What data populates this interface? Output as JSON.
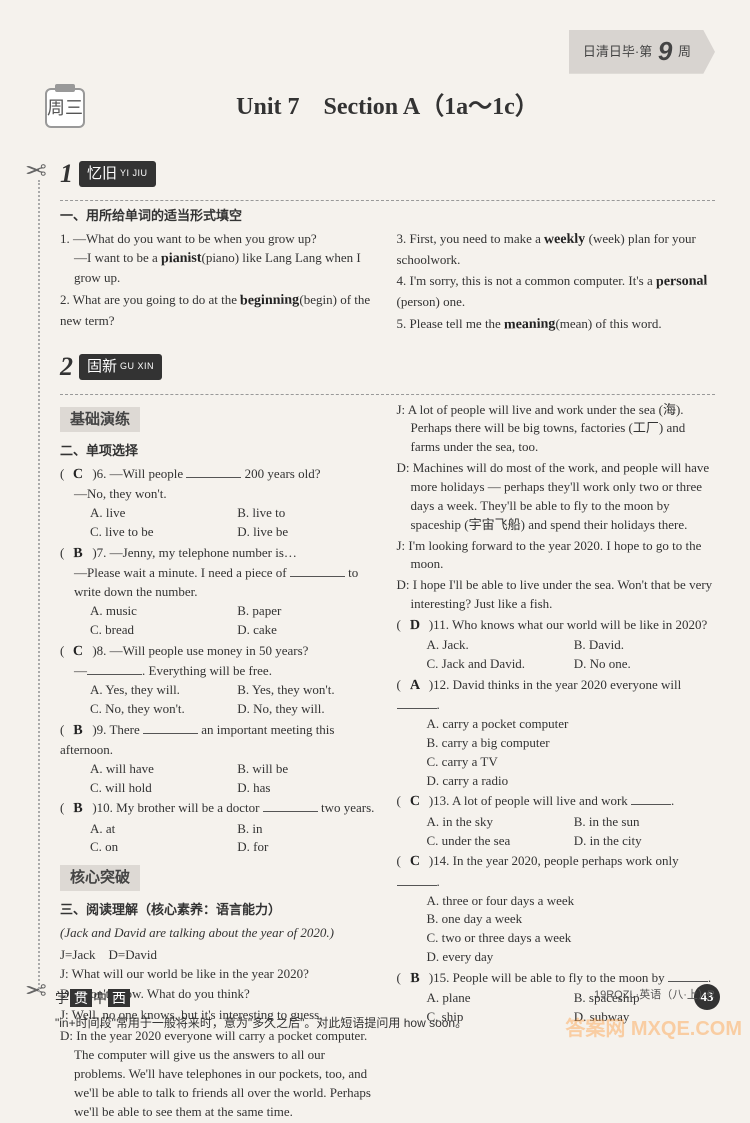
{
  "header": {
    "ribbon_prefix": "日清日毕·第",
    "week_number": "9",
    "ribbon_suffix": "周",
    "day_label": "周三",
    "unit_title": "Unit 7　Section A（1a～1c）"
  },
  "section1": {
    "number": "1",
    "pill_cn": "忆旧",
    "pill_pinyin": "YI JIU",
    "instruction": "一、用所给单词的适当形式填空",
    "left": [
      {
        "n": "1.",
        "lines": [
          "—What do you want to be when you grow up?",
          "—I want to be a {hw:pianist}(piano) like Lang Lang when I grow up."
        ]
      },
      {
        "n": "2.",
        "lines": [
          "What are you going to do at the {hw:beginning}(begin) of the new term?"
        ]
      }
    ],
    "right": [
      {
        "n": "3.",
        "lines": [
          "First, you need to make a {hw:weekly} (week) plan for your schoolwork."
        ]
      },
      {
        "n": "4.",
        "lines": [
          "I'm sorry, this is not a common computer. It's a {hw:personal} (person) one."
        ]
      },
      {
        "n": "5.",
        "lines": [
          "Please tell me the {hw:meaning}(mean) of this word."
        ]
      }
    ]
  },
  "section2": {
    "number": "2",
    "pill_cn": "固新",
    "pill_pinyin": "GU XIN",
    "sub1": "基础演练",
    "instruction2": "二、单项选择",
    "mcq_left": [
      {
        "ans": "C",
        "n": "6.",
        "stem": "—Will people ______ 200 years old?",
        "cont": "—No, they won't.",
        "opts": [
          "A. live",
          "B. live to",
          "C. live to be",
          "D. live be"
        ]
      },
      {
        "ans": "B",
        "n": "7.",
        "stem": "—Jenny, my telephone number is…",
        "cont": "—Please wait a minute. I need a piece of ______ to write down the number.",
        "opts": [
          "A. music",
          "B. paper",
          "C. bread",
          "D. cake"
        ]
      },
      {
        "ans": "C",
        "n": "8.",
        "stem": "—Will people use money in 50 years?",
        "cont": "—______. Everything will be free.",
        "opts": [
          "A. Yes, they will.",
          "B. Yes, they won't.",
          "C. No, they won't.",
          "D. No, they will."
        ]
      },
      {
        "ans": "B",
        "n": "9.",
        "stem": "There ______ an important meeting this afternoon.",
        "cont": "",
        "opts": [
          "A. will have",
          "B. will be",
          "C. will hold",
          "D. has"
        ]
      },
      {
        "ans": "B",
        "n": "10.",
        "stem": "My brother will be a doctor ______ two years.",
        "cont": "",
        "opts": [
          "A. at",
          "B. in",
          "C. on",
          "D. for"
        ]
      }
    ],
    "sub2": "核心突破",
    "instruction3": "三、阅读理解（核心素养：语言能力）",
    "reading_intro": "(Jack and David are talking about the year of 2020.)",
    "reading_key": "J=Jack　D=David",
    "dialog_left": [
      "J: What will our world be like in the year 2020?",
      "D: I don't know. What do you think?",
      "J: Well, no one knows, but it's interesting to guess.",
      "D: In the year 2020 everyone will carry a pocket computer. The computer will give us the answers to all our problems. We'll have telephones in our pockets, too, and we'll be able to talk to friends all over the world. Perhaps we'll be able to see them at the same time."
    ],
    "dialog_right": [
      "J: A lot of people will live and work under the sea (海). Perhaps there will be big towns, factories (工厂) and farms under the sea, too.",
      "D: Machines will do most of the work, and people will have more holidays — perhaps they'll work only two or three days a week. They'll be able to fly to the moon by spaceship (宇宙飞船) and spend their holidays there.",
      "J: I'm looking forward to the year 2020. I hope to go to the moon.",
      "D: I hope I'll be able to live under the sea. Won't that be very interesting? Just like a fish."
    ],
    "mcq_right": [
      {
        "ans": "D",
        "n": "11.",
        "stem": "Who knows what our world will be like in 2020?",
        "opts": [
          "A. Jack.",
          "B. David.",
          "C. Jack and David.",
          "D. No one."
        ]
      },
      {
        "ans": "A",
        "n": "12.",
        "stem": "David thinks in the year 2020 everyone will ______.",
        "opts": [
          "A. carry a pocket computer",
          "B. carry a big computer",
          "C. carry a TV",
          "D. carry a radio"
        ]
      },
      {
        "ans": "C",
        "n": "13.",
        "stem": "A lot of people will live and work ______.",
        "opts": [
          "A. in the sky",
          "B. in the sun",
          "C. under the sea",
          "D. in the city"
        ]
      },
      {
        "ans": "C",
        "n": "14.",
        "stem": "In the year 2020, people perhaps work only ______.",
        "opts": [
          "A. three or four days a week",
          "B. one day a week",
          "C. two or three days a week",
          "D. every day"
        ]
      },
      {
        "ans": "B",
        "n": "15.",
        "stem": "People will be able to fly to the moon by ______.",
        "opts": [
          "A. plane",
          "B. spaceship",
          "C. ship",
          "D. subway"
        ]
      }
    ]
  },
  "footer": {
    "logo_chars": [
      "学",
      "贯",
      "中",
      "西"
    ],
    "code": "19RQZL·英语（八·上）·R",
    "tip": "\"in+时间段\"常用于一般将来时，意为\"多久之后\"。对此短语提问用 how soon。",
    "page": "43",
    "watermark": "答案网 MXQE.COM"
  }
}
